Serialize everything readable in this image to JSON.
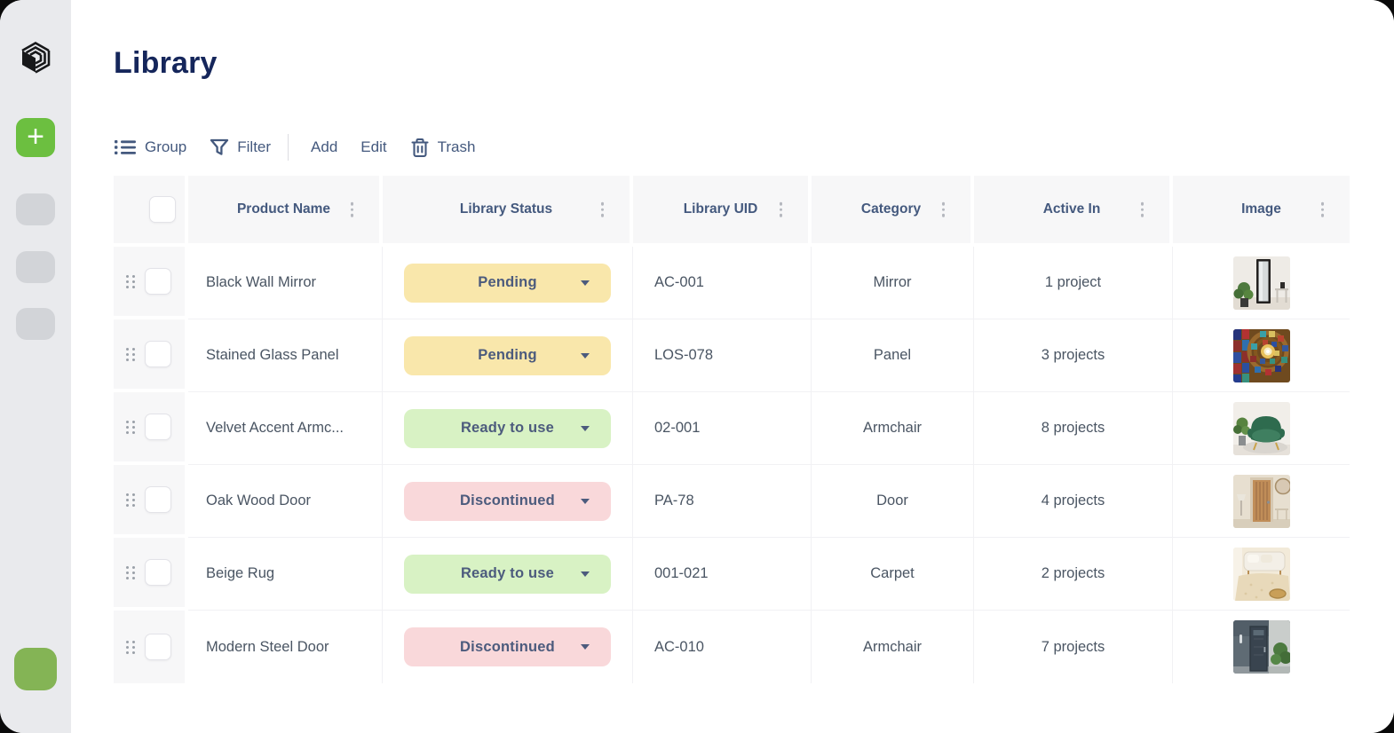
{
  "page": {
    "title": "Library"
  },
  "sidebar": {
    "logo_icon": "cube-logo-icon",
    "new_button_icon": "plus-icon",
    "placeholder_count": 3
  },
  "toolbar": {
    "group": "Group",
    "filter": "Filter",
    "add": "Add",
    "edit": "Edit",
    "trash": "Trash"
  },
  "table": {
    "columns": [
      {
        "key": "name",
        "label": "Product Name"
      },
      {
        "key": "status",
        "label": "Library Status"
      },
      {
        "key": "uid",
        "label": "Library UID"
      },
      {
        "key": "category",
        "label": "Category"
      },
      {
        "key": "active_in",
        "label": "Active In"
      },
      {
        "key": "image",
        "label": "Image"
      }
    ],
    "rows": [
      {
        "name": "Black Wall Mirror",
        "status": "Pending",
        "status_variant": "pending",
        "uid": "AC-001",
        "category": "Mirror",
        "active_in": "1 project",
        "image": "black-wall-mirror-photo"
      },
      {
        "name": "Stained Glass Panel",
        "status": "Pending",
        "status_variant": "pending",
        "uid": "LOS-078",
        "category": "Panel",
        "active_in": "3 projects",
        "image": "stained-glass-panel-photo"
      },
      {
        "name": "Velvet Accent Armc...",
        "status": "Ready to use",
        "status_variant": "ready",
        "uid": "02-001",
        "category": "Armchair",
        "active_in": "8 projects",
        "image": "velvet-accent-armchair-photo"
      },
      {
        "name": "Oak Wood Door",
        "status": "Discontinued",
        "status_variant": "discontinued",
        "uid": "PA-78",
        "category": "Door",
        "active_in": "4 projects",
        "image": "oak-wood-door-photo"
      },
      {
        "name": "Beige Rug",
        "status": "Ready to use",
        "status_variant": "ready",
        "uid": "001-021",
        "category": "Carpet",
        "active_in": "2 projects",
        "image": "beige-rug-photo"
      },
      {
        "name": "Modern Steel Door",
        "status": "Discontinued",
        "status_variant": "discontinued",
        "uid": "AC-010",
        "category": "Armchair",
        "active_in": "7 projects",
        "image": "modern-steel-door-photo"
      }
    ]
  },
  "status_colors": {
    "pending": {
      "bg": "#f9e7ab",
      "text": "#4c5b7d"
    },
    "ready": {
      "bg": "#d8f2c4",
      "text": "#4c5b7d"
    },
    "discontinued": {
      "bg": "#f9d8da",
      "text": "#4c5b7d"
    }
  },
  "accent_colors": {
    "primary_green": "#6cbf40",
    "secondary_green": "#84b455",
    "title_navy": "#15265b",
    "toolbar_slate": "#44597e"
  }
}
